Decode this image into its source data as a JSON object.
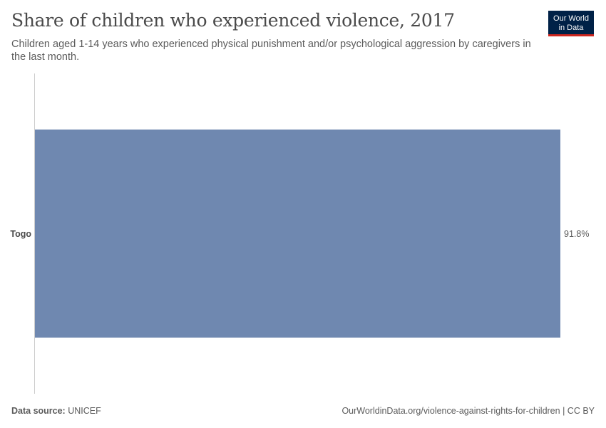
{
  "header": {
    "title": "Share of children who experienced violence, 2017",
    "subtitle": "Children aged 1-14 years who experienced physical punishment and/or psychological aggression by caregivers in the last month."
  },
  "logo": {
    "line1": "Our World",
    "line2": "in Data"
  },
  "footer": {
    "source_label": "Data source:",
    "source_value": "UNICEF",
    "url": "OurWorldinData.org/violence-against-rights-for-children",
    "license": "CC BY"
  },
  "colors": {
    "bar": "#6f88b0",
    "axis": "#cccccc",
    "logo_bg": "#002147",
    "logo_accent": "#ce261e"
  },
  "chart_data": {
    "type": "bar",
    "orientation": "horizontal",
    "categories": [
      "Togo"
    ],
    "values": [
      91.8
    ],
    "value_labels": [
      "91.8%"
    ],
    "unit": "%",
    "xlim": [
      0,
      91.8
    ],
    "title": "Share of children who experienced violence, 2017",
    "xlabel": "",
    "ylabel": ""
  }
}
